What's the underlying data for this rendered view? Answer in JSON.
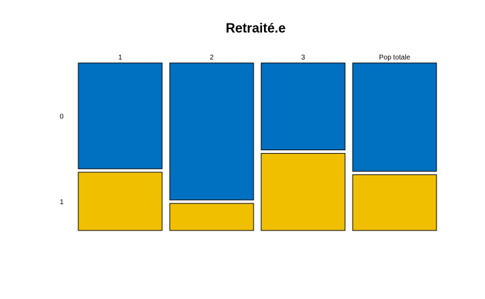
{
  "chart_data": {
    "type": "mosaic",
    "title": "Retraité.e",
    "categories": [
      "1",
      "2",
      "3",
      "Pop totale"
    ],
    "levels": [
      "0",
      "1"
    ],
    "series": [
      {
        "name": "0",
        "color": "#0070C0",
        "values": [
          0.645,
          0.835,
          0.53,
          0.66
        ]
      },
      {
        "name": "1",
        "color": "#F0C000",
        "values": [
          0.355,
          0.165,
          0.47,
          0.34
        ]
      }
    ],
    "ylim": [
      0,
      1
    ],
    "grid": false,
    "legend": "none"
  }
}
